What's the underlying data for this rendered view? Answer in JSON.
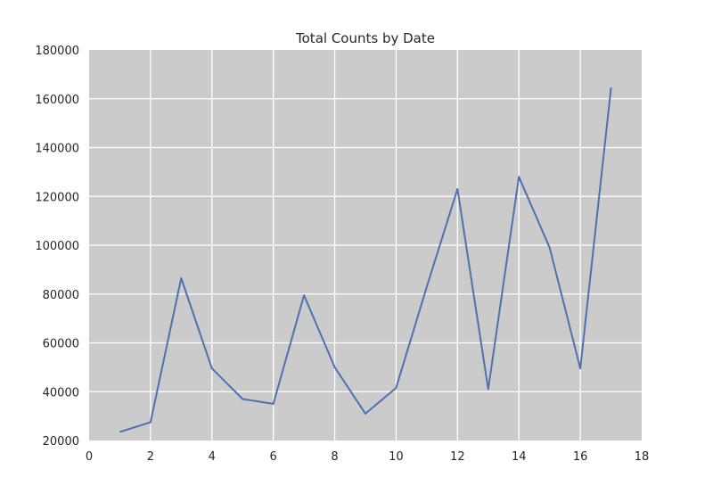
{
  "chart_data": {
    "type": "line",
    "title": "Total Counts by Date",
    "xlabel": "",
    "ylabel": "",
    "xlim": [
      0,
      18
    ],
    "ylim": [
      20000,
      180000
    ],
    "x_ticks": [
      "0",
      "2",
      "4",
      "6",
      "8",
      "10",
      "12",
      "14",
      "16",
      "18"
    ],
    "y_ticks": [
      "20000",
      "40000",
      "60000",
      "80000",
      "100000",
      "120000",
      "140000",
      "160000",
      "180000"
    ],
    "grid": true,
    "legend": "none",
    "colors": {
      "background": "#cbcbcb",
      "grid": "#ffffff",
      "line": "#4c72b0"
    },
    "series": [
      {
        "x": [
          1,
          2,
          3,
          4,
          5,
          6,
          7,
          8,
          9,
          10,
          11,
          12,
          13,
          14,
          15,
          16,
          17
        ],
        "values": [
          23500,
          27500,
          86500,
          49500,
          37000,
          35000,
          79500,
          50000,
          31000,
          41500,
          83000,
          123000,
          41000,
          128000,
          99000,
          49500,
          164500
        ]
      }
    ]
  }
}
